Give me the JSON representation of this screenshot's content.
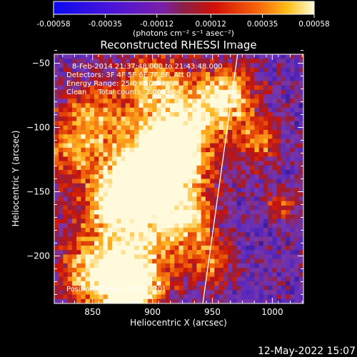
{
  "window": {
    "timestamp": "12-May-2022 15:07"
  },
  "colorbar": {
    "ticks": [
      "-0.00058",
      "-0.00035",
      "-0.00012",
      "0.00012",
      "0.00035",
      "0.00058"
    ],
    "unit_label": "(photons cm⁻² s⁻¹ asec⁻²)",
    "range": [
      -0.00058,
      0.00058
    ]
  },
  "chart_data": {
    "type": "heatmap",
    "title": "Reconstructed RHESSI Image",
    "xlabel": "Heliocentric X (arcsec)",
    "ylabel": "Heliocentric Y (arcsec)",
    "xlim": [
      818,
      1026
    ],
    "ylim": [
      -237,
      -43
    ],
    "xticks": [
      850,
      900,
      950,
      1000
    ],
    "yticks": [
      -50,
      -100,
      -150,
      -200
    ],
    "xtick_labels": [
      "850",
      "900",
      "950",
      "1000"
    ],
    "ytick_labels": [
      "−50",
      "−100",
      "−150",
      "−200"
    ],
    "grid": false,
    "annotations": [
      "8-Feb-2014 21:37:48.000 to 21:43:48.000",
      "Detectors: 3F 4F 5F 6F 7F 8F, Att 0",
      "Energy Range: 25.0 - 50.0 keV",
      "Clean     Total counts: 2.00E+04"
    ],
    "footer_note": "Position of Peak: [880,-220]",
    "peak": [
      880,
      -220
    ],
    "limb_line": {
      "x": [
        942,
        971
      ],
      "y": [
        -237,
        -43
      ]
    }
  }
}
